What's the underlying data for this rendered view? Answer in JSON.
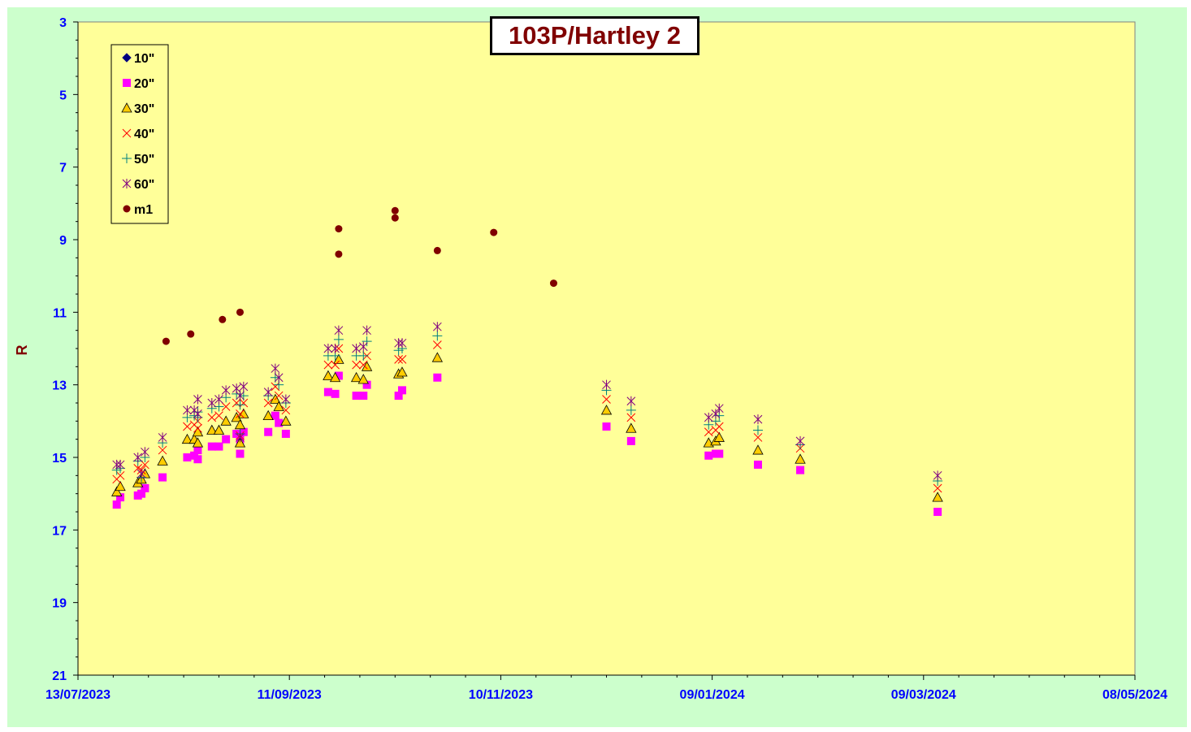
{
  "chart_data": {
    "type": "scatter",
    "title": "103P/Hartley 2",
    "ylabel": "R",
    "xlabel": "",
    "y_inverted": true,
    "ylim": [
      3,
      21
    ],
    "yticks": [
      "3",
      "5",
      "7",
      "9",
      "11",
      "13",
      "15",
      "17",
      "19",
      "21"
    ],
    "xlim": [
      "13/07/2023",
      "08/05/2024"
    ],
    "xticks": [
      "13/07/2023",
      "11/09/2023",
      "10/11/2023",
      "09/01/2024",
      "09/03/2024",
      "08/05/2024"
    ],
    "legend_position": "top-left",
    "plot_background": "#ffff99",
    "outer_background": "#ccffcc",
    "series": [
      {
        "name": "10\"",
        "marker": "diamond",
        "color": "#000080",
        "points": []
      },
      {
        "name": "20\"",
        "marker": "square",
        "color": "#ff00ff",
        "points": [
          [
            "24/07/2023",
            16.3
          ],
          [
            "25/07/2023",
            16.1
          ],
          [
            "30/07/2023",
            16.05
          ],
          [
            "31/07/2023",
            16.0
          ],
          [
            "01/08/2023",
            15.85
          ],
          [
            "06/08/2023",
            15.55
          ],
          [
            "13/08/2023",
            15.0
          ],
          [
            "15/08/2023",
            14.95
          ],
          [
            "16/08/2023",
            15.05
          ],
          [
            "16/08/2023",
            14.8
          ],
          [
            "20/08/2023",
            14.7
          ],
          [
            "22/08/2023",
            14.7
          ],
          [
            "24/08/2023",
            14.5
          ],
          [
            "27/08/2023",
            14.35
          ],
          [
            "28/08/2023",
            14.9
          ],
          [
            "28/08/2023",
            14.5
          ],
          [
            "29/08/2023",
            14.3
          ],
          [
            "05/09/2023",
            14.3
          ],
          [
            "07/09/2023",
            13.85
          ],
          [
            "08/09/2023",
            14.05
          ],
          [
            "10/09/2023",
            14.35
          ],
          [
            "22/09/2023",
            13.2
          ],
          [
            "24/09/2023",
            13.25
          ],
          [
            "25/09/2023",
            12.75
          ],
          [
            "30/09/2023",
            13.3
          ],
          [
            "02/10/2023",
            13.3
          ],
          [
            "03/10/2023",
            13.0
          ],
          [
            "12/10/2023",
            13.3
          ],
          [
            "13/10/2023",
            13.15
          ],
          [
            "23/10/2023",
            12.8
          ],
          [
            "10/12/2023",
            14.15
          ],
          [
            "17/12/2023",
            14.55
          ],
          [
            "08/01/2024",
            14.95
          ],
          [
            "10/01/2024",
            14.9
          ],
          [
            "11/01/2024",
            14.9
          ],
          [
            "22/01/2024",
            15.2
          ],
          [
            "03/02/2024",
            15.35
          ],
          [
            "13/03/2024",
            16.5
          ]
        ]
      },
      {
        "name": "30\"",
        "marker": "triangle",
        "color": "#ffcc00",
        "points": [
          [
            "24/07/2023",
            15.95
          ],
          [
            "25/07/2023",
            15.8
          ],
          [
            "30/07/2023",
            15.7
          ],
          [
            "31/07/2023",
            15.6
          ],
          [
            "01/08/2023",
            15.45
          ],
          [
            "06/08/2023",
            15.1
          ],
          [
            "13/08/2023",
            14.5
          ],
          [
            "15/08/2023",
            14.5
          ],
          [
            "16/08/2023",
            14.6
          ],
          [
            "16/08/2023",
            14.3
          ],
          [
            "20/08/2023",
            14.25
          ],
          [
            "22/08/2023",
            14.25
          ],
          [
            "24/08/2023",
            14.0
          ],
          [
            "27/08/2023",
            13.9
          ],
          [
            "28/08/2023",
            14.6
          ],
          [
            "28/08/2023",
            14.1
          ],
          [
            "29/08/2023",
            13.8
          ],
          [
            "05/09/2023",
            13.85
          ],
          [
            "07/09/2023",
            13.4
          ],
          [
            "08/09/2023",
            13.6
          ],
          [
            "10/09/2023",
            14.0
          ],
          [
            "22/09/2023",
            12.75
          ],
          [
            "24/09/2023",
            12.8
          ],
          [
            "25/09/2023",
            12.3
          ],
          [
            "30/09/2023",
            12.8
          ],
          [
            "02/10/2023",
            12.85
          ],
          [
            "03/10/2023",
            12.5
          ],
          [
            "12/10/2023",
            12.7
          ],
          [
            "13/10/2023",
            12.65
          ],
          [
            "23/10/2023",
            12.25
          ],
          [
            "10/12/2023",
            13.7
          ],
          [
            "17/12/2023",
            14.2
          ],
          [
            "08/01/2024",
            14.6
          ],
          [
            "10/01/2024",
            14.55
          ],
          [
            "11/01/2024",
            14.45
          ],
          [
            "22/01/2024",
            14.8
          ],
          [
            "03/02/2024",
            15.05
          ],
          [
            "13/03/2024",
            16.1
          ]
        ]
      },
      {
        "name": "40\"",
        "marker": "x",
        "color": "#ff0000",
        "points": [
          [
            "24/07/2023",
            15.6
          ],
          [
            "25/07/2023",
            15.5
          ],
          [
            "30/07/2023",
            15.3
          ],
          [
            "31/07/2023",
            15.35
          ],
          [
            "01/08/2023",
            15.2
          ],
          [
            "06/08/2023",
            14.8
          ],
          [
            "13/08/2023",
            14.15
          ],
          [
            "15/08/2023",
            14.1
          ],
          [
            "16/08/2023",
            14.2
          ],
          [
            "16/08/2023",
            14.0
          ],
          [
            "20/08/2023",
            13.9
          ],
          [
            "22/08/2023",
            13.85
          ],
          [
            "24/08/2023",
            13.6
          ],
          [
            "27/08/2023",
            13.5
          ],
          [
            "28/08/2023",
            14.4
          ],
          [
            "28/08/2023",
            13.8
          ],
          [
            "29/08/2023",
            13.5
          ],
          [
            "05/09/2023",
            13.5
          ],
          [
            "07/09/2023",
            13.05
          ],
          [
            "08/09/2023",
            13.3
          ],
          [
            "10/09/2023",
            13.7
          ],
          [
            "22/09/2023",
            12.45
          ],
          [
            "24/09/2023",
            12.45
          ],
          [
            "25/09/2023",
            12.0
          ],
          [
            "30/09/2023",
            12.45
          ],
          [
            "02/10/2023",
            12.45
          ],
          [
            "03/10/2023",
            12.2
          ],
          [
            "12/10/2023",
            12.3
          ],
          [
            "13/10/2023",
            12.3
          ],
          [
            "23/10/2023",
            11.9
          ],
          [
            "10/12/2023",
            13.4
          ],
          [
            "17/12/2023",
            13.9
          ],
          [
            "08/01/2024",
            14.3
          ],
          [
            "10/01/2024",
            14.25
          ],
          [
            "11/01/2024",
            14.15
          ],
          [
            "22/01/2024",
            14.45
          ],
          [
            "03/02/2024",
            14.75
          ],
          [
            "13/03/2024",
            15.85
          ]
        ]
      },
      {
        "name": "50\"",
        "marker": "plus",
        "color": "#008080",
        "points": [
          [
            "24/07/2023",
            15.35
          ],
          [
            "25/07/2023",
            15.3
          ],
          [
            "30/07/2023",
            15.1
          ],
          [
            "31/07/2023",
            15.55
          ],
          [
            "01/08/2023",
            15.0
          ],
          [
            "06/08/2023",
            14.6
          ],
          [
            "13/08/2023",
            13.9
          ],
          [
            "15/08/2023",
            13.85
          ],
          [
            "16/08/2023",
            13.9
          ],
          [
            "16/08/2023",
            13.75
          ],
          [
            "20/08/2023",
            13.65
          ],
          [
            "22/08/2023",
            13.6
          ],
          [
            "24/08/2023",
            13.35
          ],
          [
            "27/08/2023",
            13.25
          ],
          [
            "28/08/2023",
            14.35
          ],
          [
            "28/08/2023",
            13.55
          ],
          [
            "29/08/2023",
            13.3
          ],
          [
            "05/09/2023",
            13.3
          ],
          [
            "07/09/2023",
            12.8
          ],
          [
            "08/09/2023",
            13.0
          ],
          [
            "10/09/2023",
            13.5
          ],
          [
            "22/09/2023",
            12.2
          ],
          [
            "24/09/2023",
            12.2
          ],
          [
            "25/09/2023",
            11.75
          ],
          [
            "30/09/2023",
            12.2
          ],
          [
            "02/10/2023",
            12.2
          ],
          [
            "03/10/2023",
            11.8
          ],
          [
            "12/10/2023",
            12.05
          ],
          [
            "13/10/2023",
            12.0
          ],
          [
            "23/10/2023",
            11.65
          ],
          [
            "10/12/2023",
            13.15
          ],
          [
            "17/12/2023",
            13.7
          ],
          [
            "08/01/2024",
            14.1
          ],
          [
            "10/01/2024",
            14.0
          ],
          [
            "11/01/2024",
            13.85
          ],
          [
            "22/01/2024",
            14.25
          ],
          [
            "03/02/2024",
            14.65
          ],
          [
            "13/03/2024",
            15.65
          ]
        ]
      },
      {
        "name": "60\"",
        "marker": "star",
        "color": "#800080",
        "points": [
          [
            "24/07/2023",
            15.2
          ],
          [
            "25/07/2023",
            15.2
          ],
          [
            "30/07/2023",
            15.0
          ],
          [
            "31/07/2023",
            15.45
          ],
          [
            "01/08/2023",
            14.85
          ],
          [
            "06/08/2023",
            14.45
          ],
          [
            "13/08/2023",
            13.7
          ],
          [
            "15/08/2023",
            13.7
          ],
          [
            "16/08/2023",
            13.8
          ],
          [
            "16/08/2023",
            13.4
          ],
          [
            "20/08/2023",
            13.5
          ],
          [
            "22/08/2023",
            13.4
          ],
          [
            "24/08/2023",
            13.15
          ],
          [
            "27/08/2023",
            13.1
          ],
          [
            "28/08/2023",
            14.45
          ],
          [
            "28/08/2023",
            13.3
          ],
          [
            "29/08/2023",
            13.05
          ],
          [
            "05/09/2023",
            13.2
          ],
          [
            "07/09/2023",
            12.55
          ],
          [
            "08/09/2023",
            12.8
          ],
          [
            "10/09/2023",
            13.4
          ],
          [
            "22/09/2023",
            12.0
          ],
          [
            "24/09/2023",
            12.0
          ],
          [
            "25/09/2023",
            11.5
          ],
          [
            "30/09/2023",
            12.0
          ],
          [
            "02/10/2023",
            11.95
          ],
          [
            "03/10/2023",
            11.5
          ],
          [
            "12/10/2023",
            11.85
          ],
          [
            "13/10/2023",
            11.85
          ],
          [
            "23/10/2023",
            11.4
          ],
          [
            "10/12/2023",
            13.0
          ],
          [
            "17/12/2023",
            13.45
          ],
          [
            "08/01/2024",
            13.9
          ],
          [
            "10/01/2024",
            13.8
          ],
          [
            "11/01/2024",
            13.65
          ],
          [
            "22/01/2024",
            13.95
          ],
          [
            "03/02/2024",
            14.55
          ],
          [
            "13/03/2024",
            15.5
          ]
        ]
      },
      {
        "name": "m1",
        "marker": "circle",
        "color": "#800000",
        "points": [
          [
            "07/08/2023",
            11.8
          ],
          [
            "14/08/2023",
            11.6
          ],
          [
            "23/08/2023",
            11.2
          ],
          [
            "28/08/2023",
            11.0
          ],
          [
            "25/09/2023",
            8.7
          ],
          [
            "25/09/2023",
            9.4
          ],
          [
            "11/10/2023",
            8.2
          ],
          [
            "11/10/2023",
            8.4
          ],
          [
            "23/10/2023",
            9.3
          ],
          [
            "08/11/2023",
            8.8
          ],
          [
            "25/11/2023",
            10.2
          ]
        ]
      }
    ]
  }
}
